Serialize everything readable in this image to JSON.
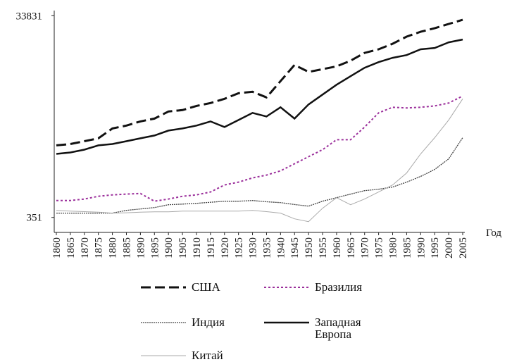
{
  "chart_data": {
    "type": "line",
    "x_label": "Год",
    "log_y": true,
    "xlim": [
      1860,
      2005
    ],
    "xticks": [
      1860,
      1865,
      1870,
      1875,
      1880,
      1885,
      1890,
      1895,
      1900,
      1905,
      1910,
      1915,
      1920,
      1925,
      1930,
      1935,
      1940,
      1945,
      1950,
      1955,
      1960,
      1965,
      1970,
      1975,
      1980,
      1985,
      1990,
      1995,
      2000,
      2005
    ],
    "ylim": [
      250,
      38000
    ],
    "yticks": [
      351,
      33831
    ],
    "x": [
      1860,
      1865,
      1870,
      1875,
      1880,
      1885,
      1890,
      1895,
      1900,
      1905,
      1910,
      1915,
      1920,
      1925,
      1930,
      1935,
      1940,
      1945,
      1950,
      1955,
      1960,
      1965,
      1970,
      1975,
      1980,
      1985,
      1990,
      1995,
      2000,
      2005
    ],
    "series": [
      {
        "name": "США",
        "color": "#111111",
        "values": [
          1794,
          1850,
          1973,
          2105,
          2632,
          2808,
          3089,
          3293,
          3863,
          3991,
          4388,
          4682,
          5153,
          5855,
          6044,
          5321,
          7687,
          11100,
          9466,
          10074,
          10741,
          12215,
          14567,
          15795,
          17936,
          21060,
          23517,
          25483,
          28080,
          30853
        ]
      },
      {
        "name": "Бразилия",
        "color": "#9b2f9b",
        "values": [
          515,
          515,
          532,
          567,
          585,
          595,
          604,
          507,
          532,
          567,
          585,
          624,
          732,
          781,
          859,
          916,
          1008,
          1184,
          1388,
          1629,
          2039,
          2039,
          2717,
          3742,
          4251,
          4184,
          4251,
          4388,
          4682,
          5490
        ]
      },
      {
        "name": "Индия",
        "color": "#444444",
        "values": [
          387,
          387,
          387,
          387,
          387,
          412,
          425,
          439,
          468,
          475,
          483,
          495,
          507,
          507,
          515,
          500,
          491,
          470,
          453,
          507,
          549,
          595,
          644,
          665,
          698,
          781,
          888,
          1041,
          1322,
          2137
        ]
      },
      {
        "name": "Западная Европа",
        "color": "#111111",
        "values": [
          1480,
          1527,
          1629,
          1794,
          1850,
          1973,
          2105,
          2243,
          2511,
          2632,
          2808,
          3089,
          2717,
          3187,
          3742,
          3454,
          4251,
          3293,
          4532,
          5672,
          7090,
          8590,
          10409,
          11829,
          13022,
          13865,
          15795,
          16287,
          18498,
          19738
        ]
      },
      {
        "name": "Китай",
        "color": "#aaaaaa",
        "values": [
          412,
          405,
          400,
          395,
          387,
          390,
          395,
          399,
          399,
          405,
          405,
          405,
          405,
          405,
          412,
          400,
          387,
          340,
          319,
          432,
          549,
          468,
          532,
          624,
          732,
          961,
          1480,
          2137,
          3187,
          5153
        ]
      }
    ]
  }
}
